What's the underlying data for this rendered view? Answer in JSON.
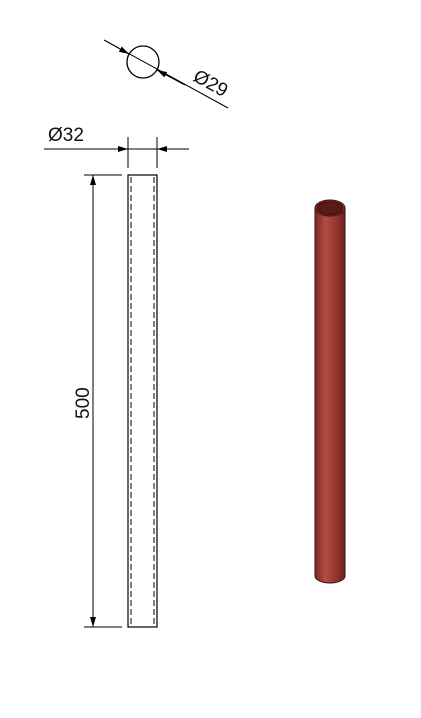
{
  "drawing": {
    "inner_diameter_label": "Ø29",
    "outer_diameter_label": "Ø32",
    "length_label": "500"
  },
  "colors": {
    "line": "#000000",
    "pipe_body": "#9a3a33",
    "pipe_highlight": "#b8544b",
    "pipe_shadow": "#6e2420",
    "pipe_inner": "#5a1a17"
  }
}
